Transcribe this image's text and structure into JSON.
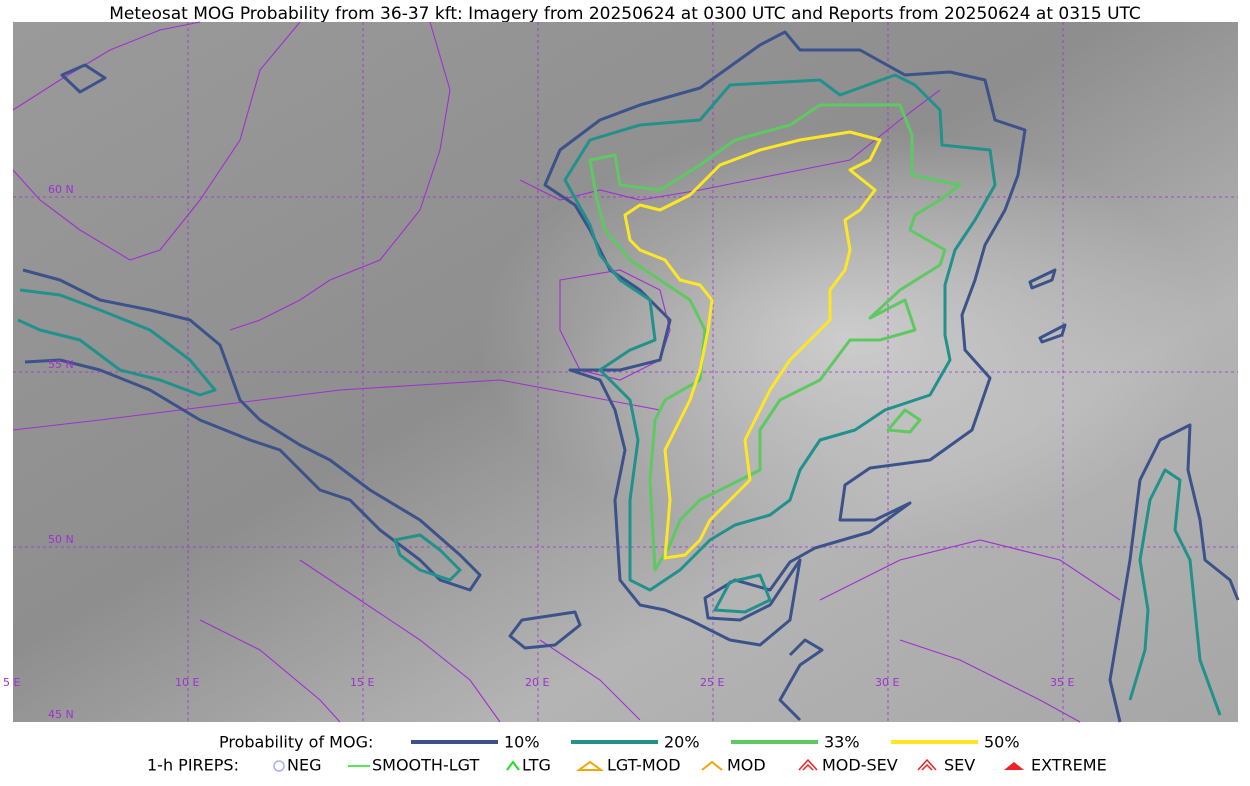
{
  "title": "Meteosat MOG Probability from 36-37 kft: Imagery from 20250624 at 0300 UTC and Reports from 20250624 at 0315 UTC",
  "map": {
    "lat_labels": [
      "60 N",
      "55 N",
      "50 N",
      "45 N"
    ],
    "lon_labels": [
      "5 E",
      "10 E",
      "15 E",
      "20 E",
      "25 E",
      "30 E",
      "35 E"
    ]
  },
  "legend": {
    "mog_title": "Probability of MOG:",
    "mog_items": [
      {
        "label": "10%",
        "color": "#3b528b"
      },
      {
        "label": "20%",
        "color": "#21918c"
      },
      {
        "label": "33%",
        "color": "#5ec962"
      },
      {
        "label": "50%",
        "color": "#fde725"
      }
    ],
    "pirep_title": "1-h PIREPS:",
    "pirep_items": [
      "NEG",
      "SMOOTH-LGT",
      "LTG",
      "LGT-MOD",
      "MOD",
      "MOD-SEV",
      "SEV",
      "EXTREME"
    ]
  }
}
